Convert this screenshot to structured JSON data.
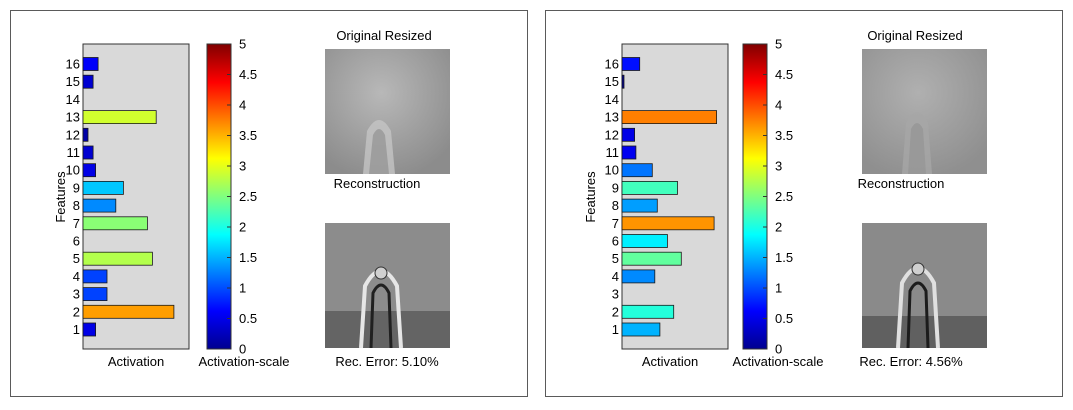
{
  "colors": {
    "axes_bg": "#d9d9d9",
    "bar_stroke": "#1a1a1a",
    "colormap": "jet",
    "image_bg": "#9b9b9b"
  },
  "chart_data": [
    {
      "type": "bar",
      "orientation": "horizontal",
      "categories": [
        "1",
        "2",
        "3",
        "4",
        "5",
        "6",
        "7",
        "8",
        "9",
        "10",
        "11",
        "12",
        "13",
        "14",
        "15",
        "16"
      ],
      "values": [
        0.5,
        3.6,
        0.95,
        0.95,
        2.75,
        0,
        2.55,
        1.3,
        1.6,
        0.5,
        0.4,
        0.2,
        2.9,
        0,
        0.4,
        0.6
      ],
      "xlabel": "Activation",
      "ylabel": "Features",
      "xlim": [
        0,
        4.2
      ],
      "colorbar": {
        "label": "Activation-scale",
        "range": [
          0,
          5
        ],
        "ticks": [
          "0",
          "0.5",
          "1",
          "1.5",
          "2",
          "2.5",
          "3",
          "3.5",
          "4",
          "4.5",
          "5"
        ]
      },
      "images": {
        "top_title": "Original Resized",
        "bottom_title": "Reconstruction"
      },
      "rec_error": "Rec. Error: 5.10%"
    },
    {
      "type": "bar",
      "orientation": "horizontal",
      "categories": [
        "1",
        "2",
        "3",
        "4",
        "5",
        "6",
        "7",
        "8",
        "9",
        "10",
        "11",
        "12",
        "13",
        "14",
        "15",
        "16"
      ],
      "values": [
        1.5,
        2.05,
        0,
        1.3,
        2.35,
        1.8,
        3.65,
        1.4,
        2.2,
        1.2,
        0.55,
        0.5,
        3.75,
        0,
        0.08,
        0.7
      ],
      "xlabel": "Activation",
      "ylabel": "Features",
      "xlim": [
        0,
        4.2
      ],
      "colorbar": {
        "label": "Activation-scale",
        "range": [
          0,
          5
        ],
        "ticks": [
          "0",
          "0.5",
          "1",
          "1.5",
          "2",
          "2.5",
          "3",
          "3.5",
          "4",
          "4.5",
          "5"
        ]
      },
      "images": {
        "top_title": "Original Resized",
        "bottom_title": "Reconstruction"
      },
      "rec_error": "Rec. Error: 4.56%"
    }
  ]
}
